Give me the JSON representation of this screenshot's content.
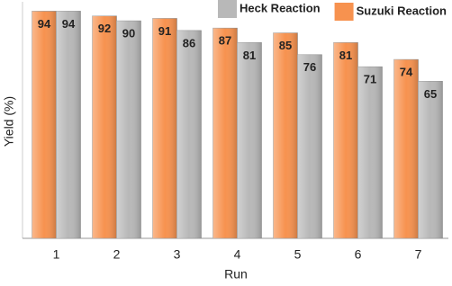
{
  "chart_data": {
    "type": "bar",
    "x_label": "Run",
    "y_label": "Yield (%)",
    "categories": [
      "1",
      "2",
      "3",
      "4",
      "5",
      "6",
      "7"
    ],
    "series": [
      {
        "name": "Suzuki Reaction",
        "color": "#f7924f",
        "values": [
          94,
          92,
          91,
          87,
          85,
          81,
          74
        ]
      },
      {
        "name": "Heck Reaction",
        "color": "#b8b8b8",
        "values": [
          94,
          90,
          86,
          81,
          76,
          71,
          65
        ]
      }
    ],
    "ylim": [
      0,
      96
    ],
    "legend": "top-right"
  }
}
